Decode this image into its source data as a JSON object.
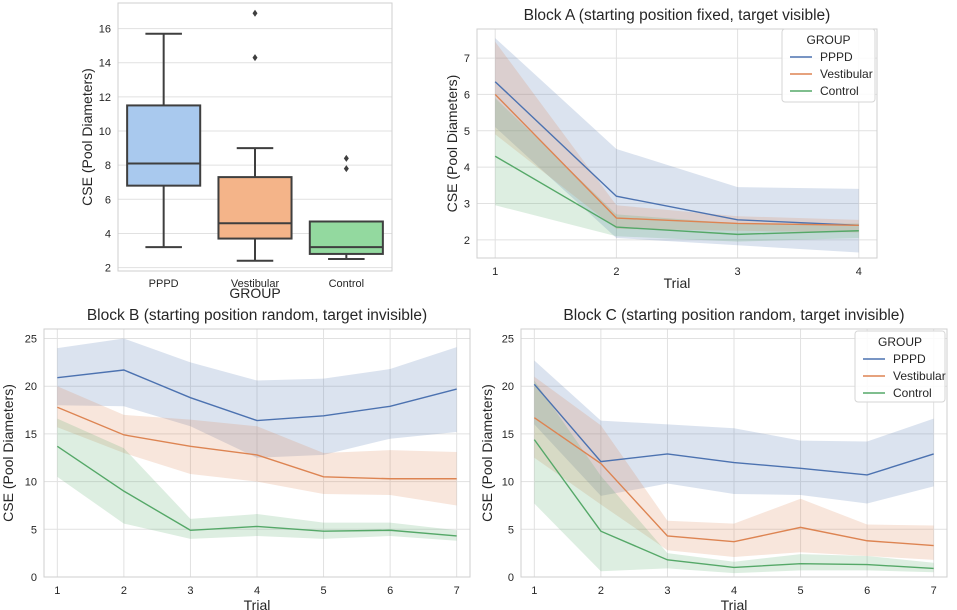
{
  "chart_data": [
    {
      "id": "boxplot",
      "type": "box",
      "title": "",
      "xlabel": "GROUP",
      "ylabel": "CSE (Pool Diameters)",
      "categories": [
        "PPPD",
        "Vestibular",
        "Control"
      ],
      "ylim": [
        1.8,
        17.5
      ],
      "yticks": [
        2,
        4,
        6,
        8,
        10,
        12,
        14,
        16
      ],
      "boxes": [
        {
          "label": "PPPD",
          "whisker_low": 3.2,
          "q1": 6.8,
          "median": 8.1,
          "q3": 11.5,
          "whisker_high": 15.7,
          "outliers": [],
          "color": "#a9c9ee"
        },
        {
          "label": "Vestibular",
          "whisker_low": 2.4,
          "q1": 3.7,
          "median": 4.6,
          "q3": 7.3,
          "whisker_high": 9.0,
          "outliers": [
            14.3,
            16.9
          ],
          "color": "#f4b489"
        },
        {
          "label": "Control",
          "whisker_low": 2.5,
          "q1": 2.8,
          "median": 3.2,
          "q3": 4.7,
          "whisker_high": 4.7,
          "outliers": [
            7.8,
            8.4
          ],
          "color": "#93d99f"
        }
      ]
    },
    {
      "id": "blockA",
      "type": "line",
      "title": "Block A (starting position fixed, target visible)",
      "xlabel": "Trial",
      "ylabel": "CSE (Pool Diameters)",
      "x": [
        1,
        2,
        3,
        4
      ],
      "xlim": [
        0.85,
        4.15
      ],
      "ylim": [
        1.5,
        7.8
      ],
      "yticks": [
        2,
        3,
        4,
        5,
        6,
        7
      ],
      "legend": {
        "title": "GROUP",
        "position": "top-right"
      },
      "series": [
        {
          "name": "PPPD",
          "color": "#4c72b0",
          "values": [
            6.35,
            3.2,
            2.55,
            2.4
          ],
          "ci_low": [
            5.1,
            2.05,
            1.85,
            1.65
          ],
          "ci_high": [
            7.55,
            4.5,
            3.45,
            3.4
          ]
        },
        {
          "name": "Vestibular",
          "color": "#dd8452",
          "values": [
            6.0,
            2.6,
            2.45,
            2.4
          ],
          "ci_low": [
            4.9,
            2.3,
            2.25,
            2.2
          ],
          "ci_high": [
            7.45,
            2.95,
            2.65,
            2.55
          ]
        },
        {
          "name": "Control",
          "color": "#55a868",
          "values": [
            4.3,
            2.35,
            2.15,
            2.25
          ],
          "ci_low": [
            2.95,
            2.1,
            1.95,
            2.05
          ],
          "ci_high": [
            5.9,
            2.7,
            2.45,
            2.45
          ]
        }
      ]
    },
    {
      "id": "blockB",
      "type": "line",
      "title": "Block B (starting position random, target invisible)",
      "xlabel": "Trial",
      "ylabel": "CSE (Pool Diameters)",
      "x": [
        1,
        2,
        3,
        4,
        5,
        6,
        7
      ],
      "xlim": [
        0.8,
        7.2
      ],
      "ylim": [
        0,
        26
      ],
      "yticks": [
        0,
        5,
        10,
        15,
        20,
        25
      ],
      "legend": null,
      "series": [
        {
          "name": "PPPD",
          "color": "#4c72b0",
          "values": [
            20.9,
            21.7,
            18.8,
            16.4,
            16.9,
            17.9,
            19.7
          ],
          "ci_low": [
            18.0,
            17.9,
            15.8,
            12.5,
            12.8,
            14.5,
            15.2
          ],
          "ci_high": [
            24.0,
            25.0,
            22.5,
            20.6,
            20.8,
            21.8,
            24.1
          ]
        },
        {
          "name": "Vestibular",
          "color": "#dd8452",
          "values": [
            17.8,
            14.9,
            13.7,
            12.8,
            10.5,
            10.3,
            10.3
          ],
          "ci_low": [
            15.7,
            13.0,
            10.8,
            10.0,
            8.7,
            8.6,
            7.5
          ],
          "ci_high": [
            20.0,
            17.0,
            16.5,
            15.8,
            13.0,
            13.3,
            13.1
          ]
        },
        {
          "name": "Control",
          "color": "#55a868",
          "values": [
            13.7,
            9.0,
            4.9,
            5.3,
            4.8,
            4.9,
            4.3
          ],
          "ci_low": [
            10.5,
            5.6,
            4.0,
            4.3,
            4.0,
            4.3,
            3.8
          ],
          "ci_high": [
            16.6,
            13.5,
            6.1,
            6.6,
            5.7,
            5.7,
            4.9
          ]
        }
      ]
    },
    {
      "id": "blockC",
      "type": "line",
      "title": "Block C (starting position random, target invisible)",
      "xlabel": "Trial",
      "ylabel": "CSE (Pool Diameters)",
      "x": [
        1,
        2,
        3,
        4,
        5,
        6,
        7
      ],
      "xlim": [
        0.8,
        7.2
      ],
      "ylim": [
        0,
        26
      ],
      "yticks": [
        0,
        5,
        10,
        15,
        20,
        25
      ],
      "legend": {
        "title": "GROUP",
        "position": "top-right"
      },
      "series": [
        {
          "name": "PPPD",
          "color": "#4c72b0",
          "values": [
            20.2,
            12.1,
            12.9,
            12.0,
            11.4,
            10.7,
            12.9
          ],
          "ci_low": [
            16.0,
            8.5,
            9.8,
            8.7,
            8.6,
            7.7,
            9.5
          ],
          "ci_high": [
            22.7,
            16.4,
            16.0,
            15.6,
            14.3,
            14.2,
            16.6
          ]
        },
        {
          "name": "Vestibular",
          "color": "#dd8452",
          "values": [
            16.7,
            11.9,
            4.3,
            3.7,
            5.2,
            3.8,
            3.3
          ],
          "ci_low": [
            12.5,
            7.6,
            2.8,
            2.1,
            2.6,
            2.2,
            1.8
          ],
          "ci_high": [
            21.0,
            15.9,
            5.9,
            5.6,
            8.2,
            5.5,
            5.4
          ]
        },
        {
          "name": "Control",
          "color": "#55a868",
          "values": [
            14.4,
            4.8,
            1.8,
            1.0,
            1.4,
            1.3,
            0.9
          ],
          "ci_low": [
            7.7,
            0.6,
            0.9,
            0.4,
            0.7,
            0.7,
            0.5
          ],
          "ci_high": [
            20.6,
            10.6,
            2.5,
            1.6,
            2.4,
            2.2,
            1.5
          ]
        }
      ]
    }
  ]
}
